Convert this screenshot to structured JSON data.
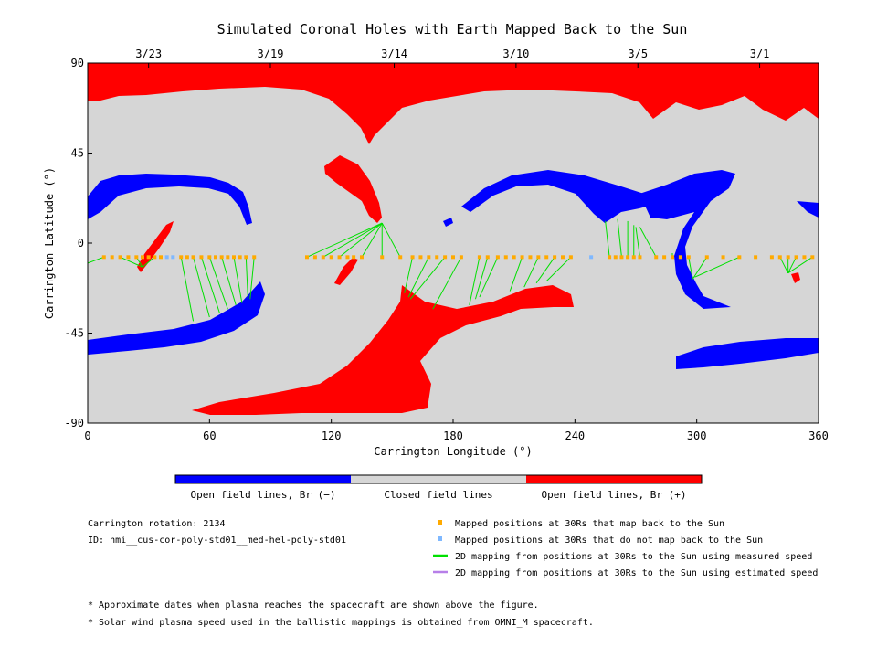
{
  "chart_data": {
    "type": "scatter",
    "title": "Simulated Coronal Holes with Earth Mapped Back to the Sun",
    "xlabel": "Carrington Longitude (°)",
    "ylabel": "Carrington Latitude (°)",
    "xlim": [
      0,
      360
    ],
    "ylim": [
      -90,
      90
    ],
    "x_ticks": [
      "0",
      "60",
      "120",
      "180",
      "240",
      "300",
      "360"
    ],
    "y_ticks": [
      "90",
      "45",
      "0",
      "-45",
      "-90"
    ],
    "top_axis_dates": [
      {
        "label": "3/23",
        "lon": 30
      },
      {
        "label": "3/19",
        "lon": 90
      },
      {
        "label": "3/14",
        "lon": 151
      },
      {
        "label": "3/10",
        "lon": 211
      },
      {
        "label": "3/5",
        "lon": 271
      },
      {
        "label": "3/1",
        "lon": 331
      }
    ],
    "colorbar": [
      "Open field lines, Br (−)",
      "Closed field lines",
      "Open field lines, Br (+)"
    ],
    "colors": {
      "negative": "#0000ff",
      "closed": "#d6d6d6",
      "positive": "#ff0000",
      "mapped": "#ffaa00",
      "unmapped": "#7fb8ff",
      "measured_line": "#00e000",
      "estimated_line": "#b77fe8"
    },
    "legend": [
      "Mapped positions at 30Rs that map back to the Sun",
      "Mapped positions at 30Rs that do not map back to the Sun",
      "2D mapping from positions at 30Rs to the Sun using measured speed",
      "2D mapping from positions at 30Rs to the Sun using estimated speed"
    ],
    "series": [
      {
        "name": "Mapped positions at 30Rs that map back to the Sun",
        "points": [
          [
            8,
            -7
          ],
          [
            12,
            -7
          ],
          [
            16,
            -7
          ],
          [
            20,
            -7
          ],
          [
            24,
            -7
          ],
          [
            27,
            -7
          ],
          [
            30,
            -7
          ],
          [
            33,
            -7
          ],
          [
            36,
            -7
          ],
          [
            46,
            -7
          ],
          [
            49,
            -7
          ],
          [
            52,
            -7
          ],
          [
            56,
            -7
          ],
          [
            60,
            -7
          ],
          [
            63,
            -7
          ],
          [
            66,
            -7
          ],
          [
            69,
            -7
          ],
          [
            72,
            -7
          ],
          [
            75,
            -7
          ],
          [
            78,
            -7
          ],
          [
            82,
            -7
          ],
          [
            108,
            -7
          ],
          [
            112,
            -7
          ],
          [
            116,
            -7
          ],
          [
            120,
            -7
          ],
          [
            124,
            -7
          ],
          [
            128,
            -7
          ],
          [
            131,
            -7
          ],
          [
            135,
            -7
          ],
          [
            145,
            -7
          ],
          [
            154,
            -7
          ],
          [
            160,
            -7
          ],
          [
            164,
            -7
          ],
          [
            168,
            -7
          ],
          [
            172,
            -7
          ],
          [
            176,
            -7
          ],
          [
            180,
            -7
          ],
          [
            184,
            -7
          ],
          [
            193,
            -7
          ],
          [
            197,
            -7
          ],
          [
            202,
            -7
          ],
          [
            206,
            -7
          ],
          [
            210,
            -7
          ],
          [
            214,
            -7
          ],
          [
            218,
            -7
          ],
          [
            222,
            -7
          ],
          [
            226,
            -7
          ],
          [
            230,
            -7
          ],
          [
            234,
            -7
          ],
          [
            238,
            -7
          ],
          [
            257,
            -7
          ],
          [
            260,
            -7
          ],
          [
            263,
            -7
          ],
          [
            266,
            -7
          ],
          [
            269,
            -7
          ],
          [
            272,
            -7
          ],
          [
            280,
            -7
          ],
          [
            284,
            -7
          ],
          [
            288,
            -7
          ],
          [
            292,
            -7
          ],
          [
            296,
            -7
          ],
          [
            305,
            -7
          ],
          [
            313,
            -7
          ],
          [
            321,
            -7
          ],
          [
            329,
            -7
          ],
          [
            337,
            -7
          ],
          [
            341,
            -7
          ],
          [
            345,
            -7
          ],
          [
            349,
            -7
          ],
          [
            353,
            -7
          ],
          [
            357,
            -7
          ]
        ]
      },
      {
        "name": "Mapped positions at 30Rs that do not map back to the Sun",
        "points": [
          [
            39,
            -7
          ],
          [
            42,
            -7
          ],
          [
            248,
            -7
          ]
        ]
      },
      {
        "name": "2D mapping from positions at 30Rs to the Sun using measured speed",
        "links": [
          [
            8,
            -7,
            0,
            -10
          ],
          [
            16,
            -7,
            27,
            -12
          ],
          [
            24,
            -7,
            27,
            -12
          ],
          [
            33,
            -7,
            27,
            -12
          ],
          [
            46,
            -7,
            52,
            -39
          ],
          [
            52,
            -7,
            60,
            -37
          ],
          [
            56,
            -7,
            65,
            -35
          ],
          [
            60,
            -7,
            69,
            -33
          ],
          [
            66,
            -7,
            73,
            -31
          ],
          [
            72,
            -7,
            76,
            -30
          ],
          [
            78,
            -7,
            79,
            -29
          ],
          [
            82,
            -7,
            80,
            -28
          ],
          [
            108,
            -7,
            145,
            10
          ],
          [
            116,
            -7,
            145,
            10
          ],
          [
            124,
            -7,
            145,
            10
          ],
          [
            135,
            -7,
            145,
            10
          ],
          [
            145,
            -7,
            145,
            10
          ],
          [
            154,
            -7,
            145,
            10
          ],
          [
            160,
            -7,
            156,
            -25
          ],
          [
            168,
            -7,
            158,
            -27
          ],
          [
            176,
            -7,
            159,
            -28
          ],
          [
            184,
            -7,
            170,
            -33
          ],
          [
            193,
            -7,
            188,
            -31
          ],
          [
            197,
            -7,
            191,
            -28
          ],
          [
            202,
            -7,
            193,
            -27
          ],
          [
            214,
            -7,
            208,
            -24
          ],
          [
            222,
            -7,
            215,
            -22
          ],
          [
            230,
            -7,
            221,
            -20
          ],
          [
            238,
            -7,
            226,
            -19
          ],
          [
            257,
            -7,
            255,
            11
          ],
          [
            263,
            -7,
            261,
            12
          ],
          [
            266,
            -7,
            266,
            11
          ],
          [
            269,
            -7,
            269,
            9
          ],
          [
            272,
            -7,
            270,
            8
          ],
          [
            280,
            -7,
            272,
            8
          ],
          [
            288,
            -7,
            288,
            -5
          ],
          [
            296,
            -7,
            298,
            -18
          ],
          [
            305,
            -7,
            298,
            -18
          ],
          [
            321,
            -7,
            299,
            -17
          ],
          [
            341,
            -7,
            345,
            -15
          ],
          [
            345,
            -7,
            345,
            -15
          ],
          [
            349,
            -7,
            345,
            -15
          ],
          [
            357,
            -7,
            345,
            -15
          ]
        ]
      }
    ]
  },
  "info": {
    "rotation": "Carrington rotation: 2134",
    "id": "ID: hmi__cus-cor-poly-std01__med-hel-poly-std01"
  },
  "notes": [
    "* Approximate dates when plasma reaches the spacecraft are shown above the figure.",
    "* Solar wind plasma speed used in the ballistic mappings is obtained from OMNI_M spacecraft."
  ]
}
